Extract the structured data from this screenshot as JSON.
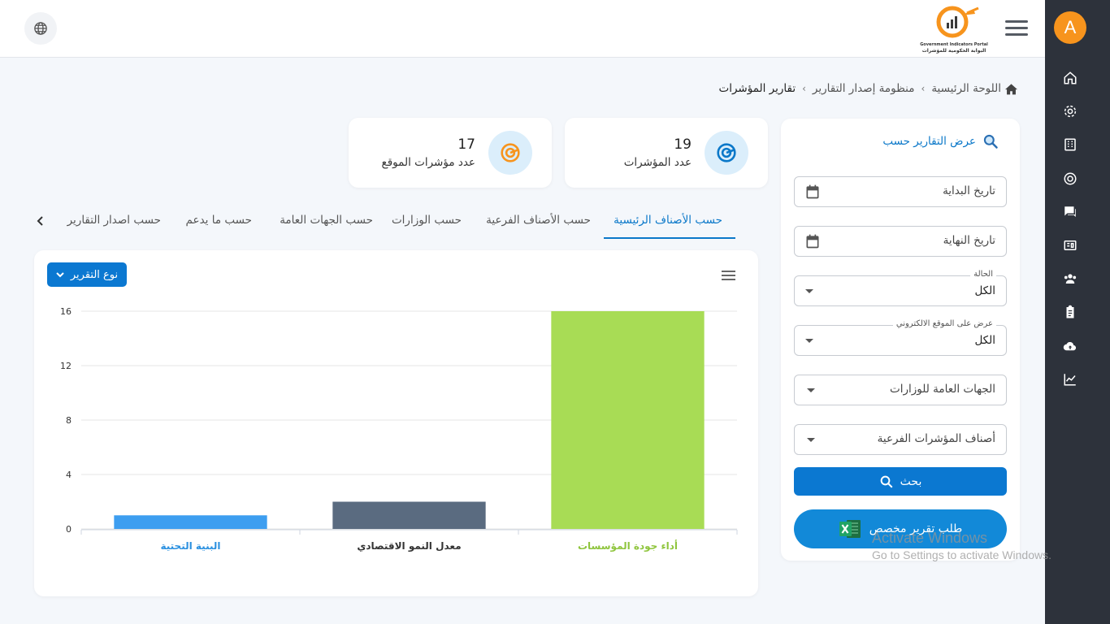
{
  "sidebar": {
    "avatar_letter": "A",
    "icons": [
      "home-icon",
      "settings-icon",
      "building-icon",
      "target-icon",
      "chat-icon",
      "news-icon",
      "users-icon",
      "clipboard-icon",
      "cloud-upload-icon",
      "chart-line-icon"
    ]
  },
  "header": {
    "logo_text_en": "Government Indicators Portal",
    "logo_text_ar": "البوابة الحكومية للمؤشرات"
  },
  "breadcrumb": {
    "home": "اللوحة الرئيسية",
    "section": "منظومة إصدار التقارير",
    "current": "تقارير المؤشرات"
  },
  "filters": {
    "title": "عرض التقارير حسب",
    "start_date": "تاريخ البداية",
    "end_date": "تاريخ النهاية",
    "status_label": "الحالة",
    "status_value": "الكل",
    "website_label": "عرض على الموقع الالكتروني",
    "website_value": "الكل",
    "ministries": "الجهات العامة للوزارات",
    "sub_categories": "أصناف المؤشرات الفرعية",
    "search_button": "بحث",
    "custom_report_button": "طلب تقرير مخصص"
  },
  "stats": [
    {
      "value": "19",
      "label": "عدد المؤشرات",
      "color": "#0b78c9",
      "bg": "#dbeefb"
    },
    {
      "value": "17",
      "label": "عدد مؤشرات الموقع",
      "color": "#f7941d",
      "bg": "#dbeefb"
    }
  ],
  "tabs": [
    {
      "label": "حسب الأصناف الرئيسية",
      "active": true
    },
    {
      "label": "حسب الأصناف الفرعية",
      "active": false
    },
    {
      "label": "حسب الوزارات",
      "active": false
    },
    {
      "label": "حسب الجهات العامة",
      "active": false
    },
    {
      "label": "حسب ما يدعم",
      "active": false
    },
    {
      "label": "حسب اصدار التقارير",
      "active": false
    }
  ],
  "report_type_button": "نوع التقرير",
  "chart_data": {
    "type": "bar",
    "categories": [
      "البنية التحتية",
      "معدل النمو الاقتصادي",
      "أداء جودة المؤسسات"
    ],
    "values": [
      1,
      2,
      16
    ],
    "colors": [
      "#3d9ef0",
      "#5a6b80",
      "#a8dc55"
    ],
    "label_colors": [
      "#2a90e0",
      "#333333",
      "#8fc53d"
    ],
    "yticks": [
      0,
      4,
      8,
      12,
      16
    ],
    "ylim": [
      0,
      16
    ],
    "grid": true
  },
  "watermark": {
    "line1": "Activate Windows",
    "line2": "Go to Settings to activate Windows."
  }
}
